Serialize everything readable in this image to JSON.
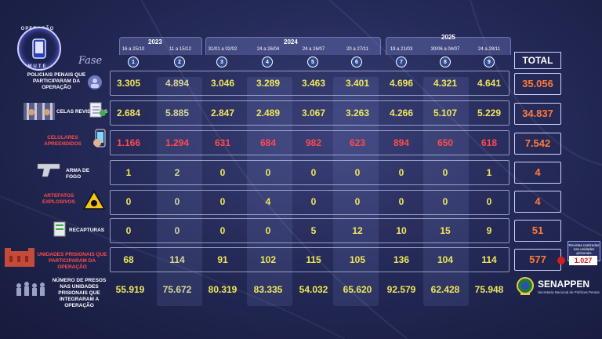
{
  "logo": {
    "top": "OPERAÇÃO",
    "bottom": "MUTE"
  },
  "fase_label": "Fase",
  "years": [
    {
      "label": "2023"
    },
    {
      "label": "2024"
    },
    {
      "label": "2025"
    }
  ],
  "total_label": "TOTAL",
  "phases": [
    {
      "num": "1",
      "date": "16 a 25/10"
    },
    {
      "num": "2",
      "date": "11 a 15/12"
    },
    {
      "num": "3",
      "date": "31/01 a 02/02"
    },
    {
      "num": "4",
      "date": "24 a 26/04"
    },
    {
      "num": "5",
      "date": "24 a 26/07"
    },
    {
      "num": "6",
      "date": "20 a 27/11"
    },
    {
      "num": "7",
      "date": "19 a 21/03"
    },
    {
      "num": "8",
      "date": "30/06 a 04/07"
    },
    {
      "num": "9",
      "date": "24 a 28/11"
    }
  ],
  "rows": [
    {
      "label": "POLICIAIS PENAIS QUE PARTICIPARAM DA OPERAÇÃO",
      "values": [
        "3.305",
        "4.894",
        "3.046",
        "3.289",
        "3.463",
        "3.401",
        "4.696",
        "4.321",
        "4.641"
      ],
      "total": "35.056"
    },
    {
      "label": "CELAS REVISTADAS",
      "values": [
        "2.684",
        "5.885",
        "2.847",
        "2.489",
        "3.067",
        "3.263",
        "4.266",
        "5.107",
        "5.229"
      ],
      "total": "34.837"
    },
    {
      "label": "CELULARES APREENDIDOS",
      "values": [
        "1.166",
        "1.294",
        "631",
        "684",
        "982",
        "623",
        "894",
        "650",
        "618"
      ],
      "total": "7.542"
    },
    {
      "label": "ARMA DE FOGO",
      "values": [
        "1",
        "2",
        "0",
        "0",
        "0",
        "0",
        "0",
        "0",
        "1"
      ],
      "total": "4"
    },
    {
      "label": "ARTEFATOS EXPLOSIVOS",
      "values": [
        "0",
        "0",
        "0",
        "4",
        "0",
        "0",
        "0",
        "0",
        "0"
      ],
      "total": "4"
    },
    {
      "label": "RECAPTURAS",
      "values": [
        "0",
        "0",
        "0",
        "0",
        "5",
        "12",
        "10",
        "15",
        "9"
      ],
      "total": "51"
    },
    {
      "label": "UNIDADES PRISIONAIS QUE PARTICIPARAM DA OPERAÇÃO",
      "values": [
        "68",
        "114",
        "91",
        "102",
        "115",
        "105",
        "136",
        "104",
        "114"
      ],
      "total": "577"
    },
    {
      "label": "NÚMERO DE PRESOS NAS UNIDADES PRISIONAIS QUE INTEGRARAM A OPERAÇÃO",
      "values": [
        "55.919",
        "75.672",
        "80.319",
        "83.335",
        "54.032",
        "65.620",
        "92.579",
        "62.428",
        "75.948"
      ],
      "total": ""
    }
  ],
  "note": {
    "text": "Revistas realizadas nas unidades prisionais",
    "value": "1.027"
  },
  "footer": {
    "brand": "SENAPPEN",
    "subtitle": "Secretaria Nacional de Políticas Penais"
  },
  "colors": {
    "yellow": "#f0e65a",
    "red": "#ff4b4b",
    "total": "#ff7a3a"
  }
}
